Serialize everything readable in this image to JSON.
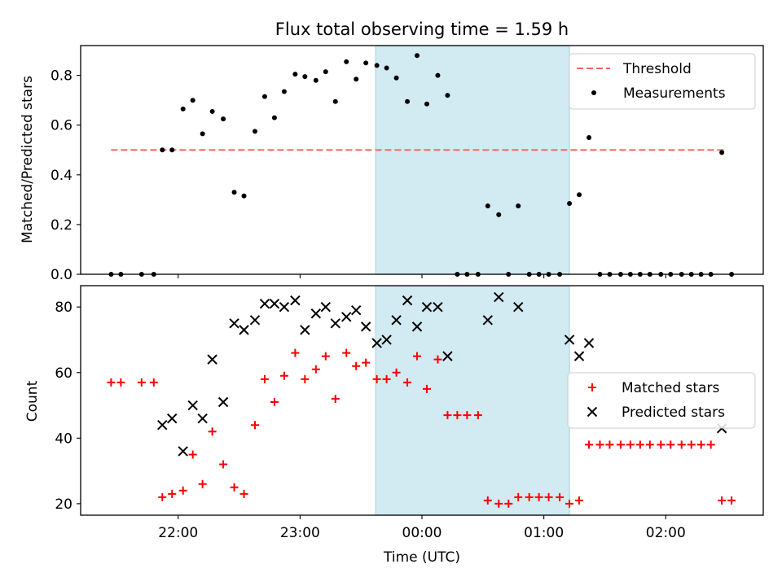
{
  "chart_data": [
    {
      "type": "scatter",
      "title": "Flux total observing time = 1.59 h",
      "xlabel": "",
      "ylabel": "Matched/Predicted stars",
      "ylim": [
        0,
        0.92
      ],
      "yticks": [
        0.0,
        0.2,
        0.4,
        0.6,
        0.8
      ],
      "ytick_labels": [
        "0.0",
        "0.2",
        "0.4",
        "0.6",
        "0.8"
      ],
      "xlim": [
        -0.8,
        4.8
      ],
      "xticks": [
        0,
        1,
        2,
        3,
        4
      ],
      "x_unit": "hours after 22:00 UTC",
      "legend_position": "top-right",
      "shaded_interval": [
        1.62,
        3.21
      ],
      "shade_color": "#add8e6",
      "series": [
        {
          "name": "Threshold",
          "kind": "line",
          "style": "dashed",
          "color": "#ff6666",
          "x": [
            -0.55,
            4.5
          ],
          "y": [
            0.5,
            0.5
          ]
        },
        {
          "name": "Measurements",
          "kind": "scatter",
          "color": "#000000",
          "x": [
            -0.55,
            -0.47,
            -0.3,
            -0.2,
            -0.13,
            -0.05,
            0.04,
            0.12,
            0.2,
            0.28,
            0.37,
            0.46,
            0.54,
            0.63,
            0.71,
            0.79,
            0.87,
            0.96,
            1.04,
            1.13,
            1.21,
            1.29,
            1.38,
            1.46,
            1.54,
            1.63,
            1.71,
            1.79,
            1.88,
            1.96,
            2.04,
            2.13,
            2.21,
            2.29,
            2.37,
            2.46,
            2.54,
            2.63,
            2.71,
            2.79,
            2.88,
            2.96,
            3.04,
            3.13,
            3.21,
            3.29,
            3.37,
            3.46,
            3.54,
            3.63,
            3.71,
            3.79,
            3.87,
            3.96,
            4.04,
            4.13,
            4.21,
            4.29,
            4.37,
            4.46,
            4.54
          ],
          "y": [
            0,
            0,
            0,
            0,
            0.5,
            0.5,
            0.665,
            0.7,
            0.565,
            0.655,
            0.625,
            0.33,
            0.315,
            0.575,
            0.715,
            0.63,
            0.735,
            0.805,
            0.795,
            0.78,
            0.815,
            0.695,
            0.855,
            0.785,
            0.85,
            0.84,
            0.83,
            0.79,
            0.695,
            0.88,
            0.685,
            0.8,
            0.72,
            0,
            0,
            0,
            0.275,
            0.24,
            0,
            0.275,
            0,
            0,
            0,
            0,
            0.285,
            0.32,
            0.55,
            0,
            0,
            0,
            0,
            0,
            0,
            0,
            0,
            0,
            0,
            0,
            0,
            0.49,
            0
          ]
        }
      ]
    },
    {
      "type": "scatter",
      "title": "",
      "xlabel": "Time (UTC)",
      "ylabel": "Count",
      "ylim": [
        16.5,
        86.5
      ],
      "yticks": [
        20,
        40,
        60,
        80
      ],
      "ytick_labels": [
        "20",
        "40",
        "60",
        "80"
      ],
      "xlim": [
        -0.8,
        4.8
      ],
      "xticks": [
        0,
        1,
        2,
        3,
        4
      ],
      "xtick_labels": [
        "22:00",
        "23:00",
        "00:00",
        "01:00",
        "02:00"
      ],
      "x_unit": "hours after 22:00 UTC",
      "legend_position": "center-right",
      "shaded_interval": [
        1.62,
        3.21
      ],
      "shade_color": "#add8e6",
      "series": [
        {
          "name": "Matched stars",
          "kind": "scatter",
          "marker": "+",
          "color": "#ff0000",
          "x": [
            -0.55,
            -0.47,
            -0.3,
            -0.2,
            -0.13,
            -0.05,
            0.04,
            0.12,
            0.2,
            0.28,
            0.37,
            0.46,
            0.54,
            0.63,
            0.71,
            0.79,
            0.87,
            0.96,
            1.04,
            1.13,
            1.21,
            1.29,
            1.38,
            1.46,
            1.54,
            1.63,
            1.71,
            1.79,
            1.88,
            1.96,
            2.04,
            2.13,
            2.21,
            2.29,
            2.37,
            2.46,
            2.54,
            2.63,
            2.71,
            2.79,
            2.88,
            2.96,
            3.04,
            3.13,
            3.21,
            3.29,
            3.37,
            3.46,
            3.54,
            3.63,
            3.71,
            3.79,
            3.87,
            3.96,
            4.04,
            4.13,
            4.21,
            4.29,
            4.37,
            4.46,
            4.54
          ],
          "y": [
            57,
            57,
            57,
            57,
            22,
            23,
            24,
            35,
            26,
            42,
            32,
            25,
            23,
            44,
            58,
            51,
            59,
            66,
            58,
            61,
            65,
            52,
            66,
            62,
            63,
            58,
            58,
            60,
            57,
            65,
            55,
            64,
            47,
            47,
            47,
            47,
            21,
            20,
            20,
            22,
            22,
            22,
            22,
            22,
            20,
            21,
            38,
            38,
            38,
            38,
            38,
            38,
            38,
            38,
            38,
            38,
            38,
            38,
            38,
            21,
            21
          ]
        },
        {
          "name": "Predicted stars",
          "kind": "scatter",
          "marker": "x",
          "color": "#000000",
          "x": [
            -0.13,
            -0.05,
            0.04,
            0.12,
            0.2,
            0.28,
            0.37,
            0.46,
            0.54,
            0.63,
            0.71,
            0.79,
            0.87,
            0.96,
            1.04,
            1.13,
            1.21,
            1.29,
            1.38,
            1.46,
            1.54,
            1.63,
            1.71,
            1.79,
            1.88,
            1.96,
            2.04,
            2.13,
            2.21,
            2.54,
            2.63,
            2.79,
            3.21,
            3.29,
            3.37,
            4.46
          ],
          "y": [
            44,
            46,
            36,
            50,
            46,
            64,
            51,
            75,
            73,
            76,
            81,
            81,
            80,
            82,
            73,
            78,
            80,
            75,
            77,
            79,
            74,
            69,
            70,
            76,
            82,
            74,
            80,
            80,
            65,
            76,
            83,
            80,
            70,
            65,
            69,
            43
          ]
        }
      ]
    }
  ]
}
